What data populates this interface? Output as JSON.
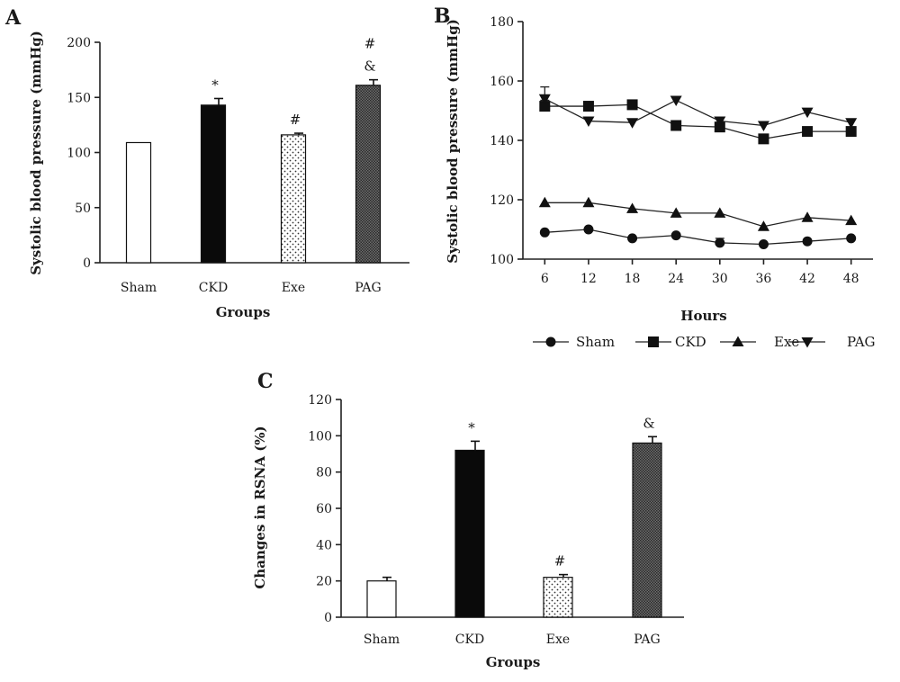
{
  "chart_data": [
    {
      "panel": "A",
      "type": "bar",
      "categories": [
        "Sham",
        "CKD",
        "Exe",
        "PAG"
      ],
      "values": [
        109,
        143,
        116,
        161
      ],
      "errors": [
        0,
        6,
        1.5,
        5
      ],
      "annotations": [
        "",
        "*",
        "#",
        "#\n&"
      ],
      "fills": [
        "white",
        "black",
        "dots",
        "crosshatch"
      ],
      "xlabel": "Groups",
      "ylabel": "Systolic blood pressure (mmHg)",
      "ylim": [
        0,
        200
      ],
      "yticks": [
        0,
        50,
        100,
        150,
        200
      ],
      "grid": false
    },
    {
      "panel": "B",
      "type": "line",
      "x": [
        6,
        12,
        18,
        24,
        30,
        36,
        42,
        48
      ],
      "series": [
        {
          "name": "Sham",
          "marker": "circle",
          "values": [
            109,
            110,
            107,
            108,
            105.5,
            105,
            106,
            107
          ],
          "errors": [
            0,
            0,
            0,
            0,
            1.5,
            0,
            0,
            0
          ]
        },
        {
          "name": "CKD",
          "marker": "square",
          "values": [
            151.5,
            151.5,
            152,
            145,
            144.5,
            140.5,
            143,
            143
          ],
          "errors": [
            2,
            0,
            1,
            0,
            0,
            1,
            0,
            0
          ]
        },
        {
          "name": "Exe",
          "marker": "triangle-up",
          "values": [
            119,
            119,
            117,
            115.5,
            115.5,
            111,
            114,
            113
          ],
          "errors": [
            0,
            0,
            0,
            0,
            0,
            0,
            0,
            0
          ]
        },
        {
          "name": "PAG",
          "marker": "triangle-down",
          "values": [
            154,
            146.5,
            146,
            153.5,
            146.5,
            145,
            149.5,
            146
          ],
          "errors": [
            4,
            0,
            0,
            0,
            0,
            0,
            0,
            0
          ]
        }
      ],
      "xlabel": "Hours",
      "ylabel": "Systolic blood pressure (mmHg)",
      "xlim": [
        3,
        51
      ],
      "ylim": [
        100,
        180
      ],
      "xticks": [
        6,
        12,
        18,
        24,
        30,
        36,
        42,
        48
      ],
      "yticks": [
        100,
        120,
        140,
        160,
        180
      ],
      "legend_position": "bottom",
      "grid": false
    },
    {
      "panel": "C",
      "type": "bar",
      "categories": [
        "Sham",
        "CKD",
        "Exe",
        "PAG"
      ],
      "values": [
        20,
        92,
        22,
        96
      ],
      "errors": [
        2,
        5,
        1.5,
        3.5
      ],
      "annotations": [
        "",
        "*",
        "#",
        "&"
      ],
      "fills": [
        "white",
        "black",
        "dots",
        "crosshatch"
      ],
      "xlabel": "Groups",
      "ylabel": "Changes in RSNA (%)",
      "ylim": [
        0,
        120
      ],
      "yticks": [
        0,
        20,
        40,
        60,
        80,
        100,
        120
      ],
      "grid": false
    }
  ]
}
